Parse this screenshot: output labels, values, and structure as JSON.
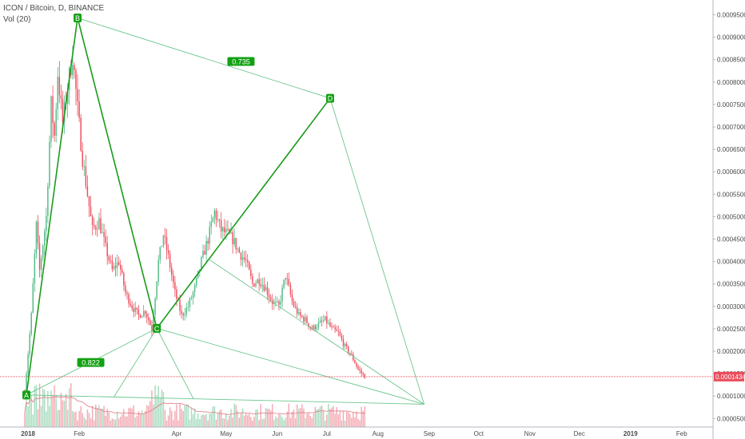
{
  "legend": {
    "symbol_line": "ICON / Bitcoin, D, BINANCE",
    "volume_line": "Vol (20)"
  },
  "colors": {
    "up": "#53b987",
    "down": "#eb4d5c",
    "pattern": "#1a9b1a",
    "pattern_light": "#6cc68f",
    "label_bg": "#13a113",
    "current_price_line": "#eb4d5c",
    "axis_text": "#4a4a4a"
  },
  "chart_data": {
    "type": "candlestick",
    "title": "ICON / Bitcoin, D, BINANCE",
    "x_axis": {
      "tick_labels": [
        "2018",
        "Feb",
        "Apr",
        "May",
        "Jun",
        "Jul",
        "Aug",
        "Sep",
        "Oct",
        "Nov",
        "Dec",
        "2019",
        "Feb"
      ],
      "bold_labels": [
        "2018",
        "2019"
      ],
      "range": [
        "2017-12-15",
        "2019-02-20"
      ]
    },
    "y_axis": {
      "tick_labels": [
        "0.0000500",
        "0.0001000",
        "0.0001500",
        "0.0002000",
        "0.0002500",
        "0.0003000",
        "0.0003500",
        "0.0004000",
        "0.0004500",
        "0.0005000",
        "0.0005500",
        "0.0006000",
        "0.0006500",
        "0.0007000",
        "0.0007500",
        "0.0008000",
        "0.0008500",
        "0.0009000",
        "0.0009500"
      ],
      "range": [
        3.1e-05,
        0.000983
      ]
    },
    "current_price": {
      "value": 0.0001434,
      "label": "0.0001434"
    },
    "price_path": [
      [
        "2017-12-30",
        0.00011
      ],
      [
        "2018-01-03",
        0.00028
      ],
      [
        "2018-01-06",
        0.00048
      ],
      [
        "2018-01-08",
        0.00038
      ],
      [
        "2018-01-12",
        0.0005
      ],
      [
        "2018-01-15",
        0.00075
      ],
      [
        "2018-01-17",
        0.00068
      ],
      [
        "2018-01-19",
        0.00082
      ],
      [
        "2018-01-22",
        0.00071
      ],
      [
        "2018-01-25",
        0.00079
      ],
      [
        "2018-01-28",
        0.00086
      ],
      [
        "2018-01-31",
        0.00074
      ],
      [
        "2018-02-03",
        0.00063
      ],
      [
        "2018-02-06",
        0.00055
      ],
      [
        "2018-02-09",
        0.00047
      ],
      [
        "2018-02-13",
        0.00049
      ],
      [
        "2018-02-17",
        0.00043
      ],
      [
        "2018-02-21",
        0.00038
      ],
      [
        "2018-02-25",
        0.0004
      ],
      [
        "2018-03-01",
        0.00033
      ],
      [
        "2018-03-05",
        0.0003
      ],
      [
        "2018-03-09",
        0.00028
      ],
      [
        "2018-03-13",
        0.00029
      ],
      [
        "2018-03-17",
        0.00025
      ],
      [
        "2018-03-21",
        0.0004
      ],
      [
        "2018-03-24",
        0.00046
      ],
      [
        "2018-03-27",
        0.00041
      ],
      [
        "2018-03-31",
        0.00033
      ],
      [
        "2018-04-04",
        0.00028
      ],
      [
        "2018-04-08",
        0.0003
      ],
      [
        "2018-04-12",
        0.00034
      ],
      [
        "2018-04-16",
        0.0004
      ],
      [
        "2018-04-20",
        0.00045
      ],
      [
        "2018-04-24",
        0.00051
      ],
      [
        "2018-04-28",
        0.00047
      ],
      [
        "2018-05-02",
        0.00046
      ],
      [
        "2018-05-05",
        0.00045
      ],
      [
        "2018-05-09",
        0.00042
      ],
      [
        "2018-05-13",
        0.0004
      ],
      [
        "2018-05-17",
        0.00035
      ],
      [
        "2018-05-21",
        0.00036
      ],
      [
        "2018-05-25",
        0.00034
      ],
      [
        "2018-05-29",
        0.00031
      ],
      [
        "2018-06-02",
        0.0003
      ],
      [
        "2018-06-06",
        0.00037
      ],
      [
        "2018-06-10",
        0.00031
      ],
      [
        "2018-06-14",
        0.00028
      ],
      [
        "2018-06-18",
        0.00027
      ],
      [
        "2018-06-22",
        0.00025
      ],
      [
        "2018-06-26",
        0.00026
      ],
      [
        "2018-06-30",
        0.00027
      ],
      [
        "2018-07-04",
        0.00025
      ],
      [
        "2018-07-08",
        0.00024
      ],
      [
        "2018-07-12",
        0.00021
      ],
      [
        "2018-07-16",
        0.00019
      ],
      [
        "2018-07-20",
        0.00016
      ],
      [
        "2018-07-24",
        0.000143
      ]
    ],
    "pattern": {
      "points": [
        {
          "label": "A",
          "date": "2017-12-31",
          "price": 0.0001025
        },
        {
          "label": "B",
          "date": "2018-01-31",
          "price": 0.000943
        },
        {
          "label": "C",
          "date": "2018-03-20",
          "price": 0.000251
        },
        {
          "label": "D",
          "date": "2018-07-03",
          "price": 0.000764
        }
      ],
      "ratios": [
        {
          "label": "0.822",
          "date": "2018-02-08",
          "price": 0.000175
        },
        {
          "label": "0.735",
          "date": "2018-05-10",
          "price": 0.000846
        }
      ],
      "projection_point": {
        "date": "2018-08-29",
        "price": 8.19e-05
      }
    }
  }
}
